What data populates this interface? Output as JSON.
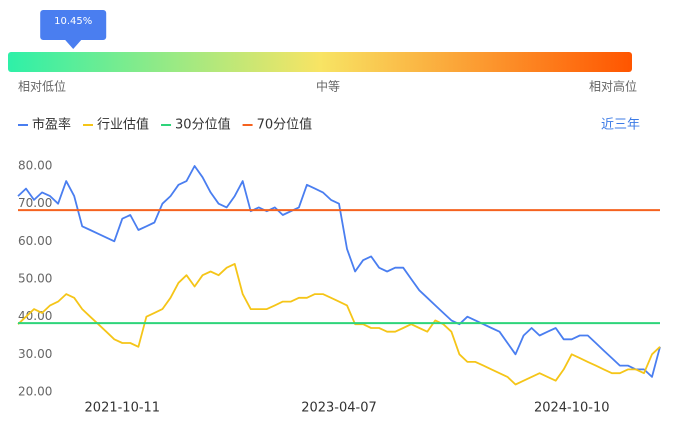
{
  "chart_data": {
    "type": "line",
    "gauge": {
      "value": 10.45,
      "value_label": "10.45%",
      "range": [
        0,
        100
      ],
      "labels": [
        "相对低位",
        "中等",
        "相对高位"
      ],
      "colors": [
        "#2ef0a8",
        "#f8e464",
        "#ff5500"
      ],
      "marker_color": "#4a7ef0"
    },
    "period": "近三年",
    "categories": [
      null,
      null,
      null,
      null,
      null,
      null,
      null,
      null,
      null,
      null,
      null,
      null,
      null,
      "2021-10-11",
      null,
      null,
      null,
      null,
      null,
      null,
      null,
      null,
      null,
      null,
      null,
      null,
      null,
      null,
      null,
      null,
      null,
      null,
      null,
      null,
      null,
      null,
      null,
      null,
      null,
      null,
      "2023-04-07",
      null,
      null,
      null,
      null,
      null,
      null,
      null,
      null,
      null,
      null,
      null,
      null,
      null,
      null,
      null,
      null,
      null,
      null,
      null,
      null,
      null,
      null,
      null,
      null,
      null,
      null,
      null,
      null,
      "2024-10-10",
      null,
      null,
      null,
      null,
      null,
      null,
      null,
      null,
      null,
      null,
      null
    ],
    "series": [
      {
        "name": "市盈率",
        "color": "#4a7ef0",
        "values": [
          72,
          74,
          71,
          73,
          72,
          70,
          76,
          72,
          64,
          63,
          62,
          61,
          60,
          66,
          67,
          63,
          64,
          65,
          70,
          72,
          75,
          76,
          80,
          77,
          73,
          70,
          69,
          72,
          76,
          68,
          69,
          68,
          69,
          67,
          68,
          69,
          75,
          74,
          73,
          71,
          70,
          58,
          52,
          55,
          56,
          53,
          52,
          53,
          53,
          50,
          47,
          45,
          43,
          41,
          39,
          38,
          40,
          39,
          38,
          37,
          36,
          33,
          30,
          35,
          37,
          35,
          36,
          37,
          34,
          34,
          35,
          35,
          33,
          31,
          29,
          27,
          27,
          26,
          26,
          24,
          32
        ]
      },
      {
        "name": "行业估值",
        "color": "#f5c518",
        "values": [
          38,
          40,
          42,
          41,
          43,
          44,
          46,
          45,
          42,
          40,
          38,
          36,
          34,
          33,
          33,
          32,
          40,
          41,
          42,
          45,
          49,
          51,
          48,
          51,
          52,
          51,
          53,
          54,
          46,
          42,
          42,
          42,
          43,
          44,
          44,
          45,
          45,
          46,
          46,
          45,
          44,
          43,
          38,
          38,
          37,
          37,
          36,
          36,
          37,
          38,
          37,
          36,
          39,
          38,
          36,
          30,
          28,
          28,
          27,
          26,
          25,
          24,
          22,
          23,
          24,
          25,
          24,
          23,
          26,
          30,
          29,
          28,
          27,
          26,
          25,
          25,
          26,
          26,
          25,
          30,
          32
        ]
      },
      {
        "name": "30分位值",
        "color": "#2ed47a",
        "value": 38.3
      },
      {
        "name": "70分位值",
        "color": "#f5621f",
        "value": 68.3
      }
    ],
    "ylim": [
      20,
      80
    ],
    "yticks": [
      {
        "value": 20,
        "label": "20.00"
      },
      {
        "value": 30,
        "label": "30.00"
      },
      {
        "value": 40,
        "label": "40.00"
      },
      {
        "value": 50,
        "label": "50.00"
      },
      {
        "value": 60,
        "label": "60.00"
      },
      {
        "value": 70,
        "label": "70.00"
      },
      {
        "value": 80,
        "label": "80.00"
      }
    ]
  }
}
